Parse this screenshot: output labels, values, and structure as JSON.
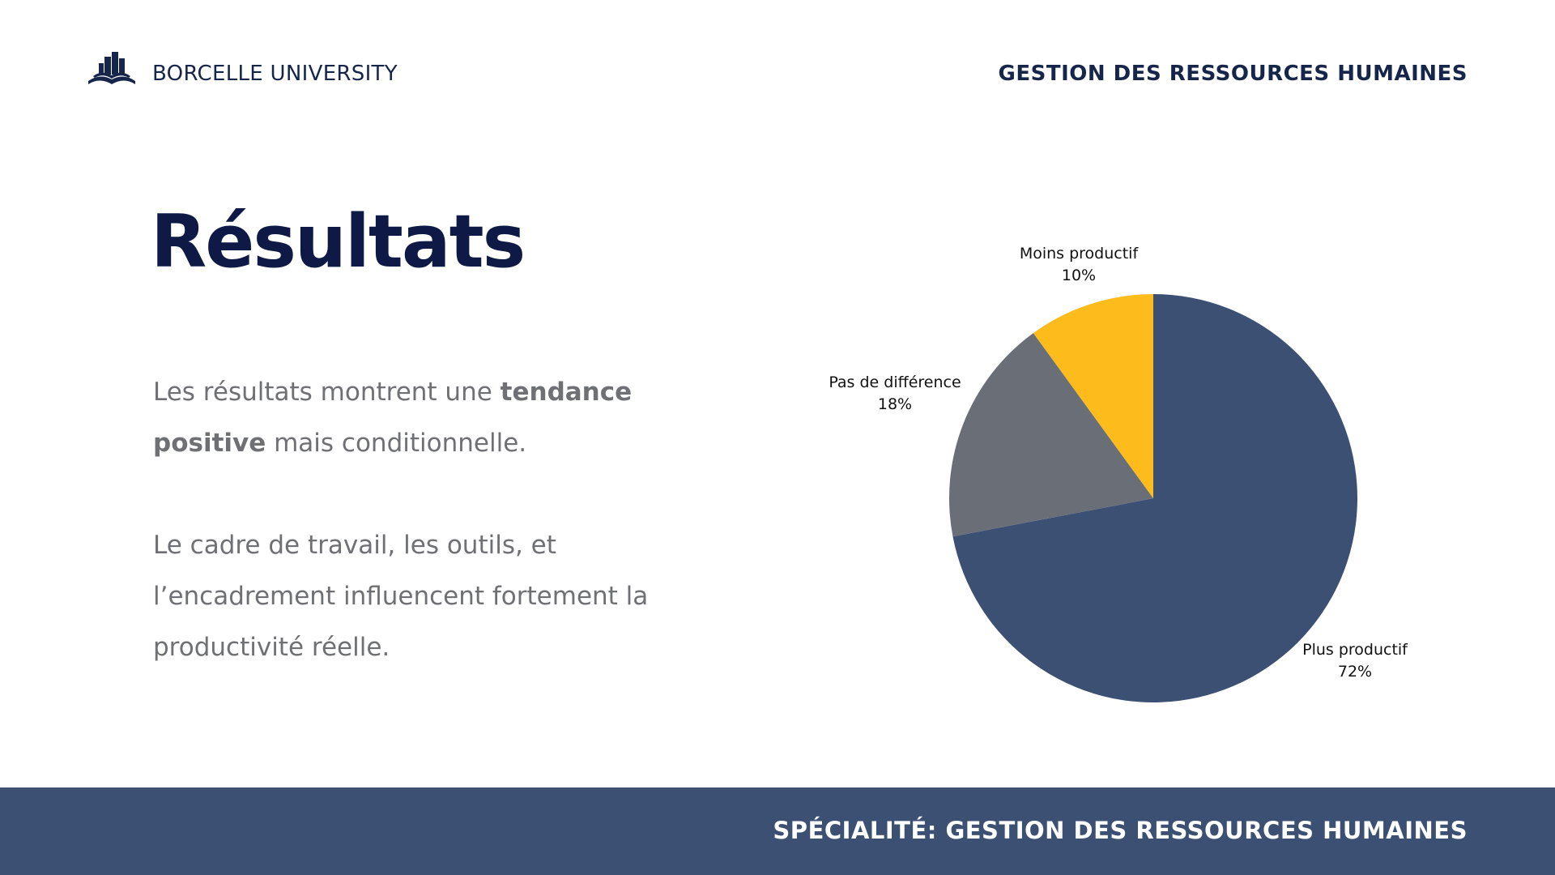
{
  "header": {
    "brand": "BORCELLE UNIVERSITY",
    "right_title": "GESTION DES RESSOURCES HUMAINES"
  },
  "main": {
    "title": "Résultats",
    "para1_prefix": "Les résultats montrent une ",
    "para1_bold": "tendance positive",
    "para1_suffix": " mais conditionnelle.",
    "para2": "Le cadre de travail, les outils, et l’encadrement influencent fortement la productivité réelle."
  },
  "footer": {
    "text": "SPÉCIALITÉ: GESTION DES RESSOURCES HUMAINES"
  },
  "colors": {
    "navy": "#0e1a45",
    "slate_blue": "#3c5074",
    "gray": "#6a6e77",
    "yellow": "#fdbb1c"
  },
  "chart_data": {
    "type": "pie",
    "categories": [
      "Plus productif",
      "Pas de différence",
      "Moins productif"
    ],
    "values": [
      72,
      18,
      10
    ],
    "value_labels": [
      "72%",
      "18%",
      "10%"
    ],
    "colors": [
      "#3c5074",
      "#6a6e77",
      "#fdbb1c"
    ],
    "start": "12 o'clock",
    "direction": "clockwise"
  }
}
